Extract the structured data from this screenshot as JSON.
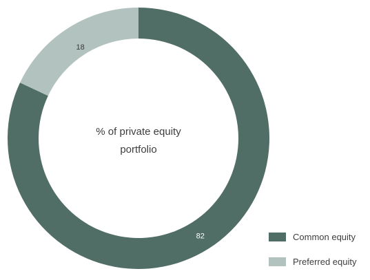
{
  "chart_data": {
    "type": "pie",
    "center_label": [
      "% of private equity",
      "portfolio"
    ],
    "slices": [
      {
        "name": "Common equity",
        "value": 82,
        "color": "#516e66"
      },
      {
        "name": "Preferred equity",
        "value": 18,
        "color": "#b2c2bf"
      }
    ],
    "legend_position": "bottom-right"
  }
}
